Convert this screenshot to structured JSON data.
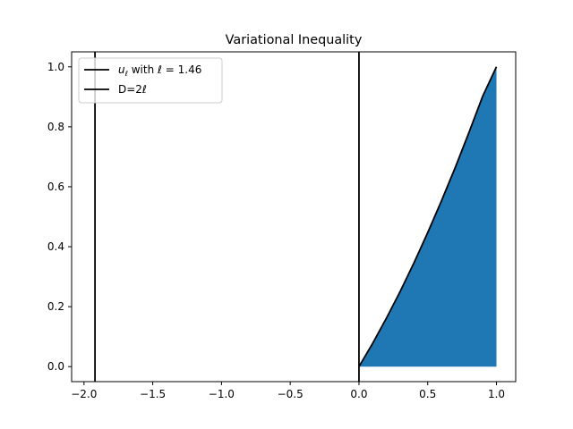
{
  "chart_data": {
    "type": "line",
    "title": "Variational Inequality",
    "xlabel": "",
    "ylabel": "",
    "xlim": [
      -2.09,
      1.14
    ],
    "ylim": [
      -0.05,
      1.05
    ],
    "x_ticks": [
      -2.0,
      -1.5,
      -1.0,
      -0.5,
      0.0,
      0.5,
      1.0
    ],
    "x_tick_labels": [
      "−2.0",
      "−1.5",
      "−1.0",
      "−0.5",
      "0.0",
      "0.5",
      "1.0"
    ],
    "y_ticks": [
      0.0,
      0.2,
      0.4,
      0.6,
      0.8,
      1.0
    ],
    "y_tick_labels": [
      "0.0",
      "0.2",
      "0.4",
      "0.6",
      "0.8",
      "1.0"
    ],
    "grid": false,
    "legend_placement": "upper-left",
    "series": [
      {
        "name": "uℓ with ℓ = 1.46",
        "legend_main": "u",
        "legend_sub": "ℓ",
        "legend_rest": " with ℓ = 1.46",
        "color": "#000000",
        "x": [
          0.0,
          0.1,
          0.2,
          0.3,
          0.4,
          0.5,
          0.6,
          0.7,
          0.8,
          0.9,
          1.0
        ],
        "y": [
          0.0,
          0.078,
          0.162,
          0.251,
          0.346,
          0.447,
          0.553,
          0.664,
          0.781,
          0.902,
          1.0
        ]
      },
      {
        "name": "D=2ℓ",
        "color": "#000000",
        "vertical_lines_x": [
          -1.92,
          0.0
        ]
      }
    ],
    "fill_region": {
      "color": "#1f77b4",
      "description_series": "under uℓ from x=0 to x=1"
    }
  }
}
